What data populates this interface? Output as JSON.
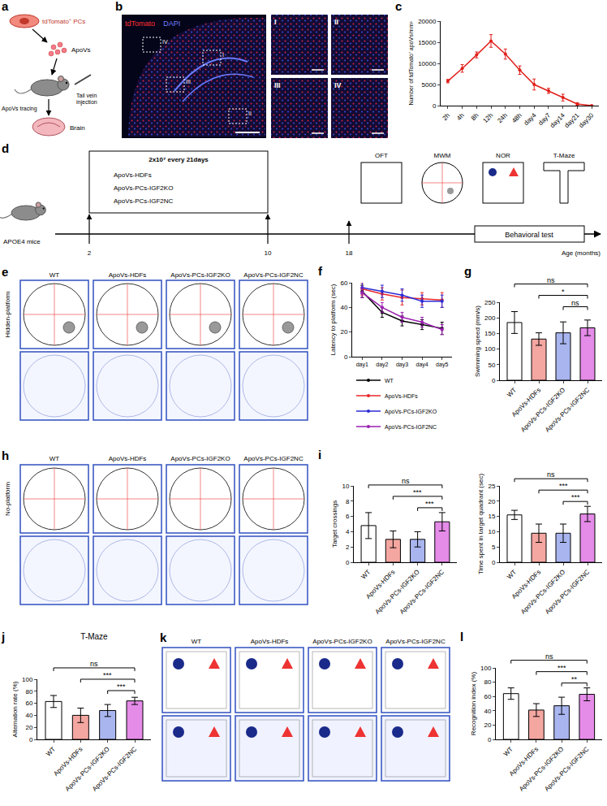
{
  "chart_data": [
    {
      "panel": "c",
      "type": "line",
      "categories": [
        "2h",
        "4h",
        "8h",
        "12h",
        "24h",
        "48h",
        "day4",
        "day7",
        "day14",
        "day21",
        "day30"
      ],
      "values": [
        5800,
        8800,
        12000,
        15300,
        12200,
        8400,
        5000,
        3500,
        1900,
        400,
        0
      ],
      "errors": [
        400,
        900,
        700,
        1500,
        1200,
        1000,
        1300,
        600,
        800,
        300,
        0
      ],
      "color": "#e0201b",
      "marker": "circle",
      "y_label": "Number of tdTomato⁺ apoVs/mm³",
      "ylim": [
        0,
        20000
      ],
      "yticks": [
        0,
        5000,
        10000,
        15000,
        20000
      ]
    },
    {
      "panel": "f",
      "type": "line",
      "categories": [
        "day1",
        "day2",
        "day3",
        "day4",
        "day5"
      ],
      "y_label": "Latency to platform (sec)",
      "ylim": [
        0,
        60
      ],
      "yticks": [
        0,
        20,
        40,
        60
      ],
      "legend": "bottom",
      "series": [
        {
          "name": "WT",
          "color": "#000000",
          "marker": "circle",
          "values": [
            53,
            36,
            29,
            26,
            23
          ],
          "errors": [
            5,
            4,
            4,
            4,
            5
          ]
        },
        {
          "name": "ApoVs-HDFs",
          "color": "#e8282b",
          "marker": "circle",
          "values": [
            55,
            51,
            48,
            47,
            46
          ],
          "errors": [
            5,
            5,
            6,
            5,
            6
          ]
        },
        {
          "name": "ApoVs-PCs-IGF2KO",
          "color": "#2b2bd6",
          "marker": "circle",
          "values": [
            56,
            53,
            50,
            45,
            45
          ],
          "errors": [
            5,
            5,
            5,
            5,
            5
          ]
        },
        {
          "name": "ApoVs-PCs-IGF2NC",
          "color": "#9b1fb0",
          "marker": "circle",
          "values": [
            52,
            40,
            32,
            28,
            22
          ],
          "errors": [
            4,
            4,
            4,
            4,
            4
          ]
        }
      ]
    },
    {
      "panel": "g",
      "type": "bar",
      "categories": [
        "WT",
        "ApoVs-HDFs",
        "ApoVs-PCs-IGF2KO",
        "ApoVs-PCs-IGF2NC"
      ],
      "values": [
        185,
        132,
        152,
        168
      ],
      "errors": [
        35,
        20,
        35,
        25
      ],
      "colors": [
        "#ffffff",
        "#f4a6a0",
        "#a9b5ef",
        "#e58be8"
      ],
      "y_label": "Swimming speed (mm/s)",
      "ylim": [
        0,
        250
      ],
      "yticks": [
        0,
        50,
        100,
        150,
        200,
        250
      ],
      "significance": [
        {
          "from": "ApoVs-PCs-IGF2KO",
          "to": "ApoVs-PCs-IGF2NC",
          "label": "ns"
        },
        {
          "from": "ApoVs-HDFs",
          "to": "ApoVs-PCs-IGF2NC",
          "label": "*"
        },
        {
          "from": "WT",
          "to": "ApoVs-PCs-IGF2NC",
          "label": "ns"
        }
      ]
    },
    {
      "panel": "i",
      "type": "bar",
      "categories": [
        "WT",
        "ApoVs-HDFs",
        "ApoVs-PCs-IGF2KO",
        "ApoVs-PCs-IGF2NC"
      ],
      "values": [
        4.8,
        3.0,
        3.0,
        5.3
      ],
      "errors": [
        1.7,
        1.1,
        1.0,
        1.2
      ],
      "colors": [
        "#ffffff",
        "#f4a6a0",
        "#a9b5ef",
        "#e58be8"
      ],
      "y_label": "Target crossings",
      "ylim": [
        0,
        10
      ],
      "yticks": [
        0,
        2,
        4,
        6,
        8,
        10
      ],
      "significance": [
        {
          "from": "ApoVs-PCs-IGF2KO",
          "to": "ApoVs-PCs-IGF2NC",
          "label": "***"
        },
        {
          "from": "ApoVs-HDFs",
          "to": "ApoVs-PCs-IGF2NC",
          "label": "***"
        },
        {
          "from": "WT",
          "to": "ApoVs-PCs-IGF2NC",
          "label": "ns"
        }
      ]
    },
    {
      "type": "bar",
      "categories": [
        "WT",
        "ApoVs-HDFs",
        "ApoVs-PCs-IGF2KO",
        "ApoVs-PCs-IGF2NC"
      ],
      "values": [
        15.5,
        9.5,
        9.5,
        15.8
      ],
      "errors": [
        1.5,
        3,
        3,
        2.5
      ],
      "colors": [
        "#ffffff",
        "#f4a6a0",
        "#a9b5ef",
        "#e58be8"
      ],
      "y_label": "Time spent in target quadrant (sec)",
      "ylim": [
        0,
        25
      ],
      "yticks": [
        0,
        5,
        10,
        15,
        20,
        25
      ],
      "significance": [
        {
          "from": "ApoVs-PCs-IGF2KO",
          "to": "ApoVs-PCs-IGF2NC",
          "label": "***"
        },
        {
          "from": "ApoVs-HDFs",
          "to": "ApoVs-PCs-IGF2NC",
          "label": "***"
        },
        {
          "from": "WT",
          "to": "ApoVs-PCs-IGF2NC",
          "label": "ns"
        }
      ]
    },
    {
      "panel": "j",
      "type": "bar",
      "title": "T-Maze",
      "categories": [
        "WT",
        "ApoVs-HDFs",
        "ApoVs-PCs-IGF2KO",
        "ApoVs-PCs-IGF2NC"
      ],
      "values": [
        63,
        40,
        48,
        64
      ],
      "errors": [
        10,
        12,
        10,
        6
      ],
      "colors": [
        "#ffffff",
        "#f4a6a0",
        "#a9b5ef",
        "#e58be8"
      ],
      "y_label": "Alternation rate (%)",
      "ylim": [
        0,
        100
      ],
      "yticks": [
        0,
        20,
        40,
        60,
        80,
        100
      ],
      "significance": [
        {
          "from": "ApoVs-PCs-IGF2KO",
          "to": "ApoVs-PCs-IGF2NC",
          "label": "***"
        },
        {
          "from": "ApoVs-HDFs",
          "to": "ApoVs-PCs-IGF2NC",
          "label": "***"
        },
        {
          "from": "WT",
          "to": "ApoVs-PCs-IGF2NC",
          "label": "ns"
        }
      ]
    },
    {
      "panel": "l",
      "type": "bar",
      "categories": [
        "WT",
        "ApoVs-HDFs",
        "ApoVs-PCs-IGF2KO",
        "ApoVs-PCs-IGF2NC"
      ],
      "values": [
        64,
        41,
        47,
        63
      ],
      "errors": [
        8,
        9,
        12,
        9
      ],
      "colors": [
        "#ffffff",
        "#f4a6a0",
        "#a9b5ef",
        "#e58be8"
      ],
      "y_label": "Recognition index (%)",
      "ylim": [
        0,
        100
      ],
      "yticks": [
        0,
        20,
        40,
        60,
        80,
        100
      ],
      "significance": [
        {
          "from": "ApoVs-PCs-IGF2KO",
          "to": "ApoVs-PCs-IGF2NC",
          "label": "**"
        },
        {
          "from": "ApoVs-HDFs",
          "to": "ApoVs-PCs-IGF2NC",
          "label": "***"
        },
        {
          "from": "WT",
          "to": "ApoVs-PCs-IGF2NC",
          "label": "ns"
        }
      ]
    }
  ],
  "diagrams": {
    "a": {
      "letter": "a",
      "cell": "tdTomato⁺ PCs",
      "vesicles": "ApoVs",
      "injection": "Tail vein injection",
      "tracing": "ApoVs tracing",
      "organ": "Brain"
    },
    "b": {
      "letter": "b",
      "stain_red": "tdTomato",
      "stain_blue": "DAPI",
      "regions": [
        "I",
        "II",
        "III",
        "IV"
      ]
    },
    "d": {
      "letter": "d",
      "dose": "2x10⁷ every 21days",
      "groups": [
        "ApoVs-HDFs",
        "ApoVs-PCs-IGF2KO",
        "ApoVs-PCs-IGF2NC"
      ],
      "model": "APOE4 mice",
      "tests": [
        "OFT",
        "MWM",
        "NOR",
        "T-Maze"
      ],
      "test_label": "Behavioral test",
      "ages": [
        "2",
        "10",
        "18"
      ],
      "age_label": "Age (months)"
    },
    "e": {
      "letter": "e",
      "row_label": "Hidden-platform",
      "groups": [
        "WT",
        "ApoVs-HDFs",
        "ApoVs-PCs-IGF2KO",
        "ApoVs-PCs-IGF2NC"
      ]
    },
    "h": {
      "letter": "h",
      "row_label": "No-platform",
      "groups": [
        "WT",
        "ApoVs-HDFs",
        "ApoVs-PCs-IGF2KO",
        "ApoVs-PCs-IGF2NC"
      ]
    },
    "k": {
      "letter": "k",
      "groups": [
        "WT",
        "ApoVs-HDFs",
        "ApoVs-PCs-IGF2KO",
        "ApoVs-PCs-IGF2NC"
      ]
    }
  }
}
